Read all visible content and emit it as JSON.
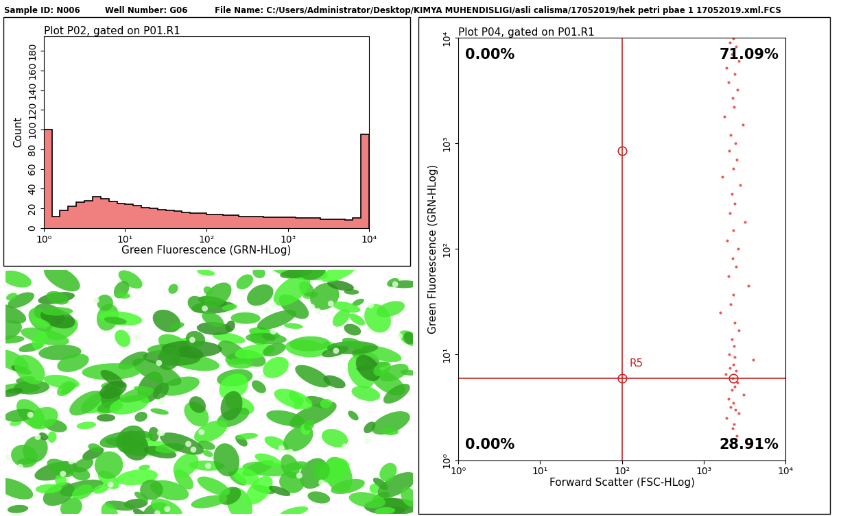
{
  "header": {
    "sample_id": "Sample ID: N006",
    "well_number": "Well Number: G06",
    "file_name": "File Name: C:/Users/Administrator/Desktop/KIMYA MUHENDISLIGI/asli calisma/17052019/hek petri pbae 1 17052019.xml.FCS"
  },
  "chart_data": [
    {
      "type": "histogram",
      "title": "Plot P02, gated on P01.R1",
      "x_label": "Green Fluorescence (GRN-HLog)",
      "y_label": "Count",
      "log": "x",
      "color": "#f08080",
      "bins": [
        1,
        1.259,
        1.585,
        1.995,
        2.512,
        3.162,
        3.981,
        5.012,
        6.31,
        7.943,
        10,
        12.59,
        15.85,
        19.95,
        25.12,
        31.62,
        39.81,
        50.12,
        63.1,
        79.43,
        100,
        125.9,
        158.5,
        199.5,
        251.2,
        316.2,
        398.1,
        501.2,
        631,
        794.3,
        1000,
        1259,
        1585,
        1995,
        2512,
        3162,
        3981,
        5012,
        6310,
        7943,
        10000
      ],
      "counts": [
        100,
        12,
        18,
        22,
        26,
        28,
        32,
        30,
        27,
        25,
        24,
        23,
        21,
        20,
        19,
        18,
        17,
        16,
        15,
        15,
        14,
        14,
        13,
        13,
        12,
        12,
        12,
        11,
        11,
        11,
        11,
        10,
        10,
        10,
        9,
        9,
        9,
        8,
        10,
        95
      ],
      "xlim": [
        1,
        10000
      ],
      "xticks": [
        {
          "value": 1,
          "label": "10⁰"
        },
        {
          "value": 10,
          "label": "10¹"
        },
        {
          "value": 100,
          "label": "10²"
        },
        {
          "value": 1000,
          "label": "10³"
        },
        {
          "value": 10000,
          "label": "10⁴"
        }
      ],
      "ylim": [
        0,
        195
      ],
      "yticks": [
        0,
        20,
        40,
        60,
        80,
        100,
        120,
        140,
        160,
        180
      ]
    },
    {
      "type": "scatter",
      "title": "Plot P04, gated on P01.R1",
      "x_label": "Forward Scatter (FSC-HLog)",
      "y_label": "Green Fluorescence (GRN-HLog)",
      "log": true,
      "color": "#e8302e",
      "marker": "point",
      "x": [
        2300,
        2100,
        2500,
        2200,
        2700,
        1900,
        2400,
        2000,
        2600,
        2250,
        2350,
        1800,
        3000,
        2150,
        2450,
        2050,
        2550,
        2300,
        1700,
        2800,
        2200,
        2400,
        2100,
        3200,
        2300,
        1950,
        2650,
        2250,
        2500,
        2000,
        3500,
        2300,
        2150,
        1600,
        2400,
        2700,
        2200,
        2350,
        2050,
        4000,
        2300,
        2100,
        2500,
        1850,
        2250,
        2600,
        2400,
        2200,
        3100,
        2000,
        2300,
        2150,
        2450,
        2700,
        1900,
        2350,
        2250,
        2550,
        2100,
        2400
      ],
      "y": [
        9800,
        9000,
        8200,
        7000,
        6000,
        5200,
        4500,
        3800,
        3200,
        2700,
        2200,
        1800,
        1500,
        1200,
        1000,
        850,
        700,
        580,
        480,
        400,
        330,
        270,
        220,
        180,
        150,
        120,
        100,
        82,
        68,
        55,
        45,
        37,
        30,
        25,
        20,
        17,
        14,
        12,
        10,
        9,
        8,
        7.5,
        7,
        6.5,
        6,
        5.5,
        5,
        4.6,
        4.2,
        3.8,
        3.5,
        3.2,
        3,
        2.8,
        2.5,
        2.2,
        2,
        1.7,
        1.4,
        9.5
      ],
      "xlim": [
        1,
        10000
      ],
      "xticks": [
        {
          "value": 1,
          "label": "10⁰"
        },
        {
          "value": 10,
          "label": "10¹"
        },
        {
          "value": 100,
          "label": "10²"
        },
        {
          "value": 1000,
          "label": "10³"
        },
        {
          "value": 10000,
          "label": "10⁴"
        }
      ],
      "ylim": [
        1,
        10000
      ],
      "yticks": [
        {
          "value": 1,
          "label": "10⁰"
        },
        {
          "value": 10,
          "label": "10¹"
        },
        {
          "value": 100,
          "label": "10²"
        },
        {
          "value": 1000,
          "label": "10³"
        },
        {
          "value": 10000,
          "label": "10⁴"
        }
      ],
      "gate": {
        "name": "R5",
        "x": 100,
        "y": 6,
        "handles_x": [
          100,
          100,
          2300
        ],
        "handles_y": [
          850,
          6,
          6
        ]
      },
      "annotations": [
        "0.00%",
        "71.09%",
        "0.00%",
        "28.91%"
      ]
    }
  ]
}
